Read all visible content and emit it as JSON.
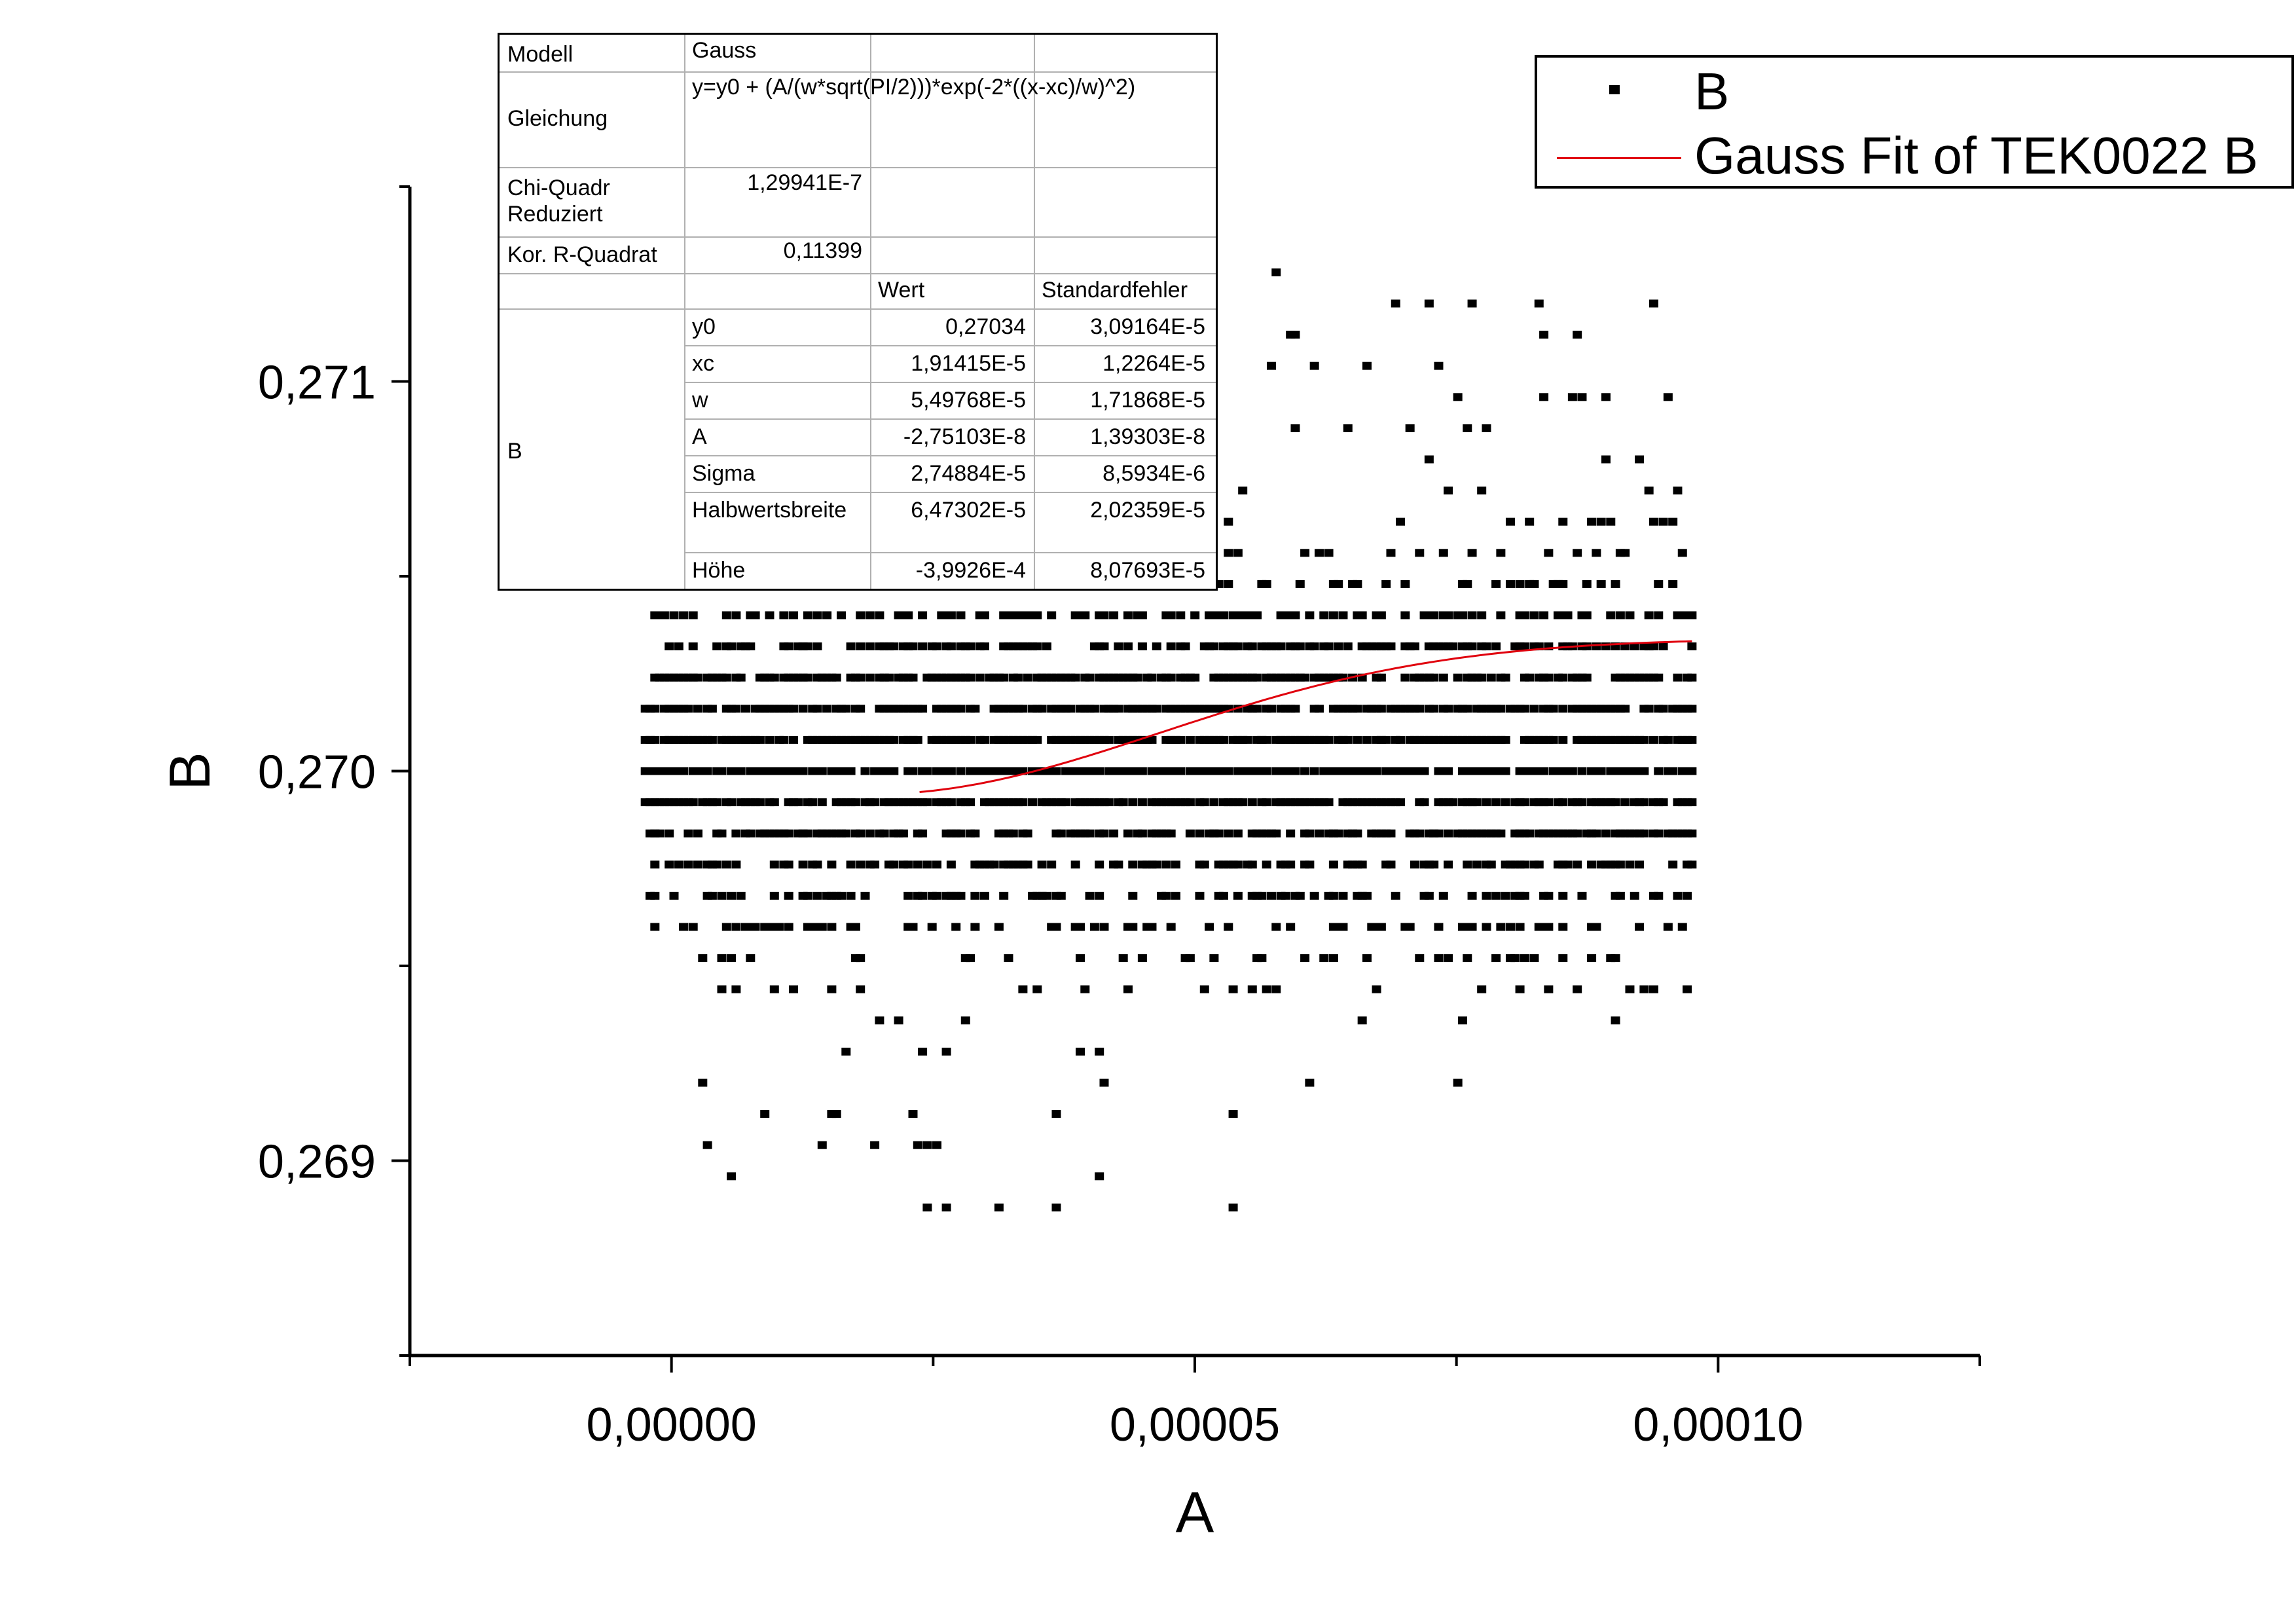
{
  "chart_data": {
    "type": "scatter",
    "xlabel": "A",
    "ylabel": "B",
    "xlim": [
      -2.5e-05,
      0.000125
    ],
    "ylim": [
      0.2685,
      0.2715
    ],
    "x_ticks": [
      0,
      5e-05,
      0.0001
    ],
    "x_tick_labels": [
      "0,00000",
      "0,00005",
      "0,00010"
    ],
    "y_ticks": [
      0.269,
      0.27,
      0.271
    ],
    "y_tick_labels": [
      "0,269",
      "0,270",
      "0,271"
    ],
    "x_range_of_points": [
      -2.5e-06,
      9.75e-05
    ],
    "y_levels": [
      0.26888,
      0.26896,
      0.26904,
      0.26912,
      0.2692,
      0.26928,
      0.26936,
      0.26944,
      0.26952,
      0.2696,
      0.26968,
      0.26976,
      0.26984,
      0.26992,
      0.27,
      0.27008,
      0.27016,
      0.27024,
      0.27032,
      0.2704,
      0.27048,
      0.27056,
      0.27064,
      0.27072,
      0.2708,
      0.27088,
      0.27096,
      0.27104,
      0.27112,
      0.2712,
      0.27128
    ],
    "grid": false,
    "legend_position": "top-right",
    "series": [
      {
        "name": "B",
        "type": "scatter",
        "color": "#000000",
        "marker": "square"
      },
      {
        "name": "Gauss Fit of TEK0022 B",
        "type": "line",
        "color": "#e0000d",
        "x_range": [
          2.37e-05,
          9.75e-05
        ]
      }
    ],
    "fit": {
      "y0": 0.27034,
      "xc": 1.91415e-05,
      "w": 5.49768e-05,
      "A": -2.75103e-08
    }
  },
  "legend": {
    "items": [
      "B",
      "Gauss Fit of TEK0022 B"
    ]
  },
  "fit_table": {
    "modell_label": "Modell",
    "modell_value": "Gauss",
    "gleichung_label": "Gleichung",
    "gleichung_value": "y=y0 + (A/(w*sqrt(PI/2)))*exp(-2*((x-xc)/w)^2)",
    "chi_label_1": "Chi-Quadr",
    "chi_label_2": "Reduziert",
    "chi_value": "1,29941E-7",
    "r_label": "Kor. R-Quadrat",
    "r_value": "0,11399",
    "col_wert": "Wert",
    "col_std": "Standardfehler",
    "group_label": "B",
    "params": [
      {
        "name": "y0",
        "wert": "0,27034",
        "std": "3,09164E-5"
      },
      {
        "name": "xc",
        "wert": "1,91415E-5",
        "std": "1,2264E-5"
      },
      {
        "name": "w",
        "wert": "5,49768E-5",
        "std": "1,71868E-5"
      },
      {
        "name": "A",
        "wert": "-2,75103E-8",
        "std": "1,39303E-8"
      },
      {
        "name": "Sigma",
        "wert": "2,74884E-5",
        "std": "8,5934E-6"
      },
      {
        "name": "Halbwertsbreite",
        "wert": "6,47302E-5",
        "std": "2,02359E-5"
      },
      {
        "name": "Höhe",
        "wert": "-3,9926E-4",
        "std": "8,07693E-5"
      }
    ]
  }
}
